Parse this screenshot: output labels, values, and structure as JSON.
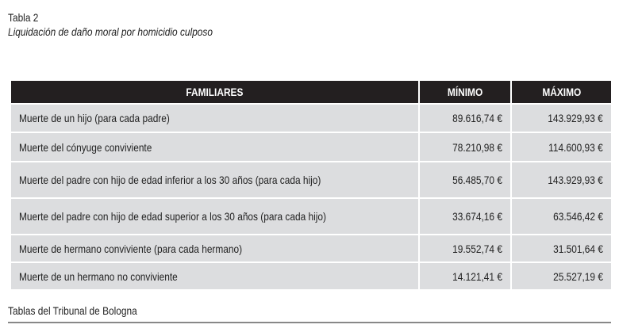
{
  "title": "Tabla 2",
  "subtitle": "Liquidación de daño moral por homicidio culposo",
  "table": {
    "headers": [
      "FAMILIARES",
      "MÍNIMO",
      "MÁXIMO"
    ],
    "rows": [
      [
        "Muerte de un hijo (para cada padre)",
        "89.616,74 €",
        "143.929,93 €"
      ],
      [
        "Muerte del cónyuge conviviente",
        "78.210,98 €",
        "114.600,93 €"
      ],
      [
        "Muerte del padre con hijo de edad inferior a los 30 años (para cada hijo)",
        "56.485,70 €",
        "143.929,93 €"
      ],
      [
        "Muerte del padre con hijo de edad superior a los 30 años (para cada hijo)",
        "33.674,16 €",
        "63.546,42 €"
      ],
      [
        "Muerte de hermano conviviente (para cada hermano)",
        "19.552,74 €",
        "31.501,64 €"
      ],
      [
        "Muerte de un hermano no conviviente",
        "14.121,41 €",
        "25.527,19 €"
      ]
    ]
  },
  "source": "Tablas del Tribunal de Bologna"
}
